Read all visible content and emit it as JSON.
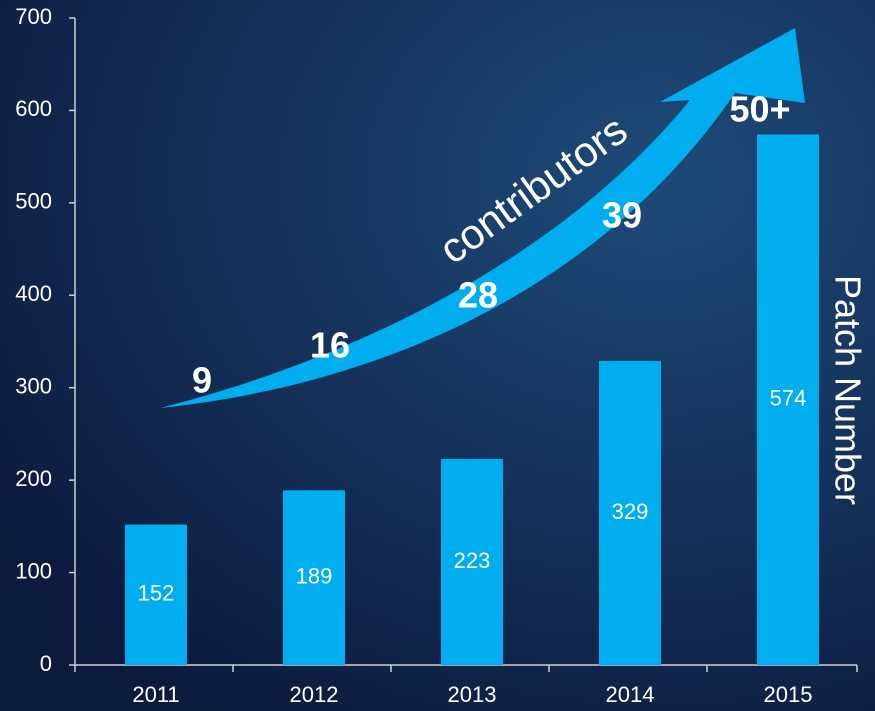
{
  "chart_data": {
    "type": "bar",
    "categories": [
      "2011",
      "2012",
      "2013",
      "2014",
      "2015"
    ],
    "values": [
      152,
      189,
      223,
      329,
      574
    ],
    "color": "#00aeef",
    "ylim": [
      0,
      700
    ],
    "yticks": [
      0,
      100,
      200,
      300,
      400,
      500,
      600,
      700
    ],
    "grid": false,
    "axis_label": "Patch Number",
    "annotation": {
      "label": "contributors",
      "counts": [
        "9",
        "16",
        "28",
        "39",
        "50+"
      ]
    }
  }
}
